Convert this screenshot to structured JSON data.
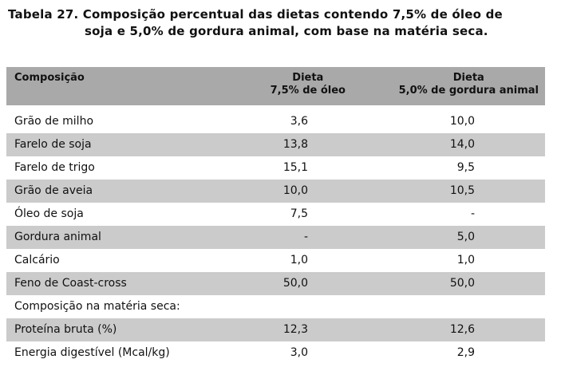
{
  "title": {
    "line1": "Tabela 27. Composição percentual das dietas contendo 7,5% de óleo de",
    "line2": "soja e 5,0% de gordura animal, com base na matéria seca."
  },
  "header": {
    "col0": "Composição",
    "col1_l1": "Dieta",
    "col1_l2": "7,5% de óleo",
    "col2_l1": "Dieta",
    "col2_l2": "5,0% de gordura animal"
  },
  "rows": [
    {
      "name": "Grão de milho",
      "v1": "3,6",
      "v2": "10,0"
    },
    {
      "name": "Farelo de soja",
      "v1": "13,8",
      "v2": "14,0"
    },
    {
      "name": "Farelo de trigo",
      "v1": "15,1",
      "v2": "9,5"
    },
    {
      "name": "Grão de aveia",
      "v1": "10,0",
      "v2": "10,5"
    },
    {
      "name": "Óleo de soja",
      "v1": "7,5",
      "v2": "-"
    },
    {
      "name": "Gordura animal",
      "v1": "-",
      "v2": "5,0"
    },
    {
      "name": "Calcário",
      "v1": "1,0",
      "v2": "1,0"
    },
    {
      "name": "Feno de Coast-cross",
      "v1": "50,0",
      "v2": "50,0"
    },
    {
      "name": "Composição na matéria seca:",
      "v1": "",
      "v2": ""
    },
    {
      "name": "Proteína bruta (%)",
      "v1": "12,3",
      "v2": "12,6"
    },
    {
      "name": "Energia digestível (Mcal/kg)",
      "v1": "3,0",
      "v2": "2,9"
    }
  ]
}
